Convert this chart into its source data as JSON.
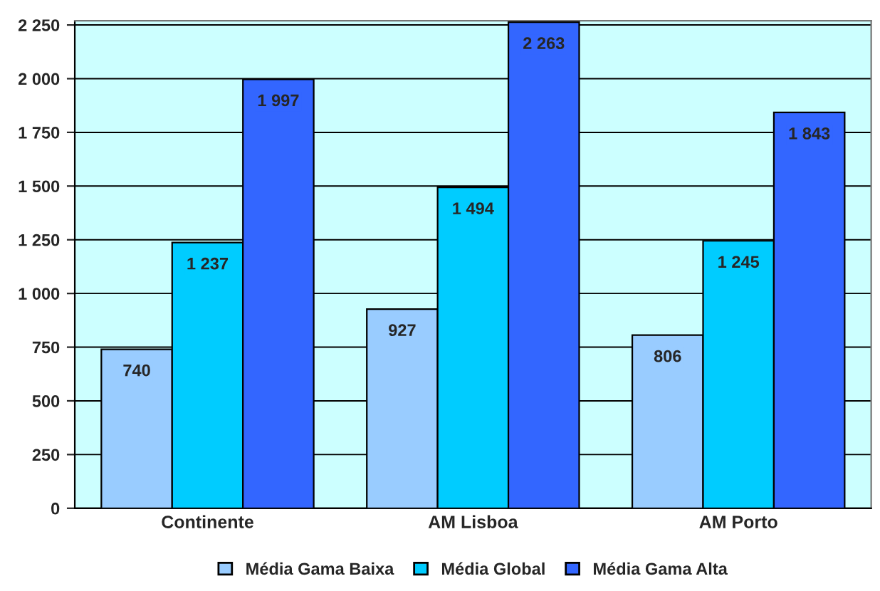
{
  "chart_data": {
    "type": "bar",
    "categories": [
      "Continente",
      "AM Lisboa",
      "AM Porto"
    ],
    "series": [
      {
        "name": "Média Gama Baixa",
        "color": "#99ccff",
        "values": [
          740,
          927,
          806
        ],
        "value_labels": [
          "740",
          "927",
          "806"
        ]
      },
      {
        "name": "Média Global",
        "color": "#00ccff",
        "values": [
          1237,
          1494,
          1245
        ],
        "value_labels": [
          "1 237",
          "1 494",
          "1 245"
        ]
      },
      {
        "name": "Média Gama Alta",
        "color": "#3366ff",
        "values": [
          1997,
          2263,
          1843
        ],
        "value_labels": [
          "1 997",
          "2 263",
          "1 843"
        ]
      }
    ],
    "ylim": [
      0,
      2270
    ],
    "yticks": [
      0,
      250,
      500,
      750,
      {
        "value": 1000,
        "label": "1 000"
      },
      {
        "value": 1250,
        "label": "1 250"
      },
      {
        "value": 1500,
        "label": "1 500"
      },
      {
        "value": 1750,
        "label": "1 750"
      },
      {
        "value": 2000,
        "label": "2 000"
      },
      {
        "value": 2250,
        "label": "2 250"
      }
    ],
    "grid": "y",
    "legend": "bottom"
  }
}
